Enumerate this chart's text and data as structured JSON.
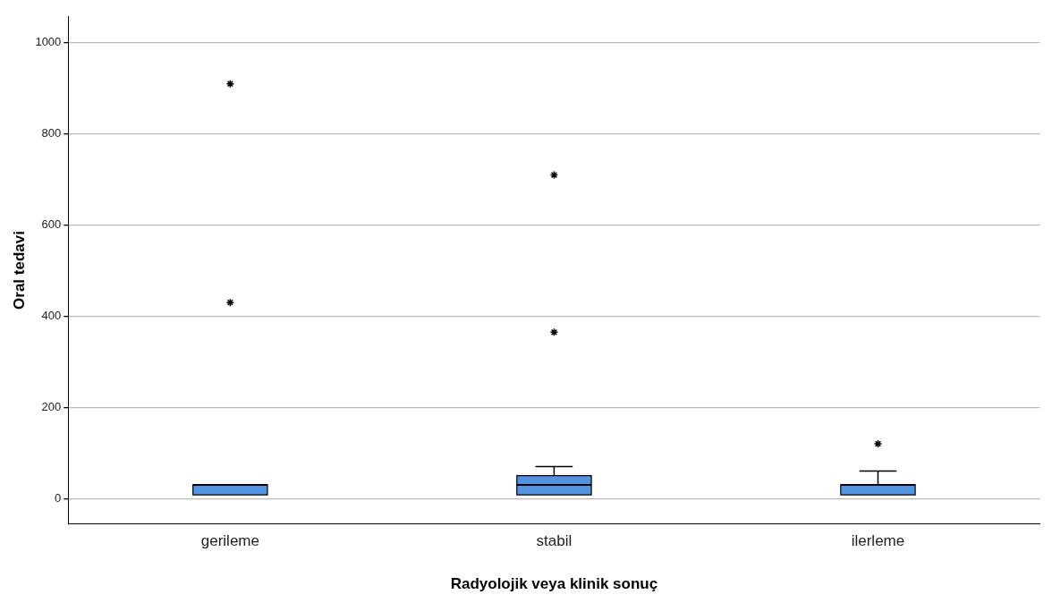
{
  "chart_data": {
    "type": "box",
    "xlabel": "Radyolojik veya klinik sonuç",
    "ylabel": "Oral tedavi",
    "categories": [
      "gerileme",
      "stabil",
      "ilerleme"
    ],
    "series": [
      {
        "color": "#5294e2",
        "boxes": [
          {
            "low": 8,
            "q1": 8,
            "median": 30,
            "q3": 30,
            "high": 30,
            "outliers": [
              910,
              430
            ]
          },
          {
            "low": 8,
            "q1": 8,
            "median": 30,
            "q3": 50,
            "high": 70,
            "outliers": [
              710,
              365
            ]
          },
          {
            "low": 8,
            "q1": 8,
            "median": 30,
            "q3": 30,
            "high": 60,
            "outliers": [
              120
            ]
          }
        ]
      }
    ],
    "ylim": [
      -55,
      1057
    ],
    "yticks": [
      0,
      200,
      400,
      600,
      800,
      1000
    ],
    "grid": "y",
    "marker": "star",
    "legend": false
  }
}
